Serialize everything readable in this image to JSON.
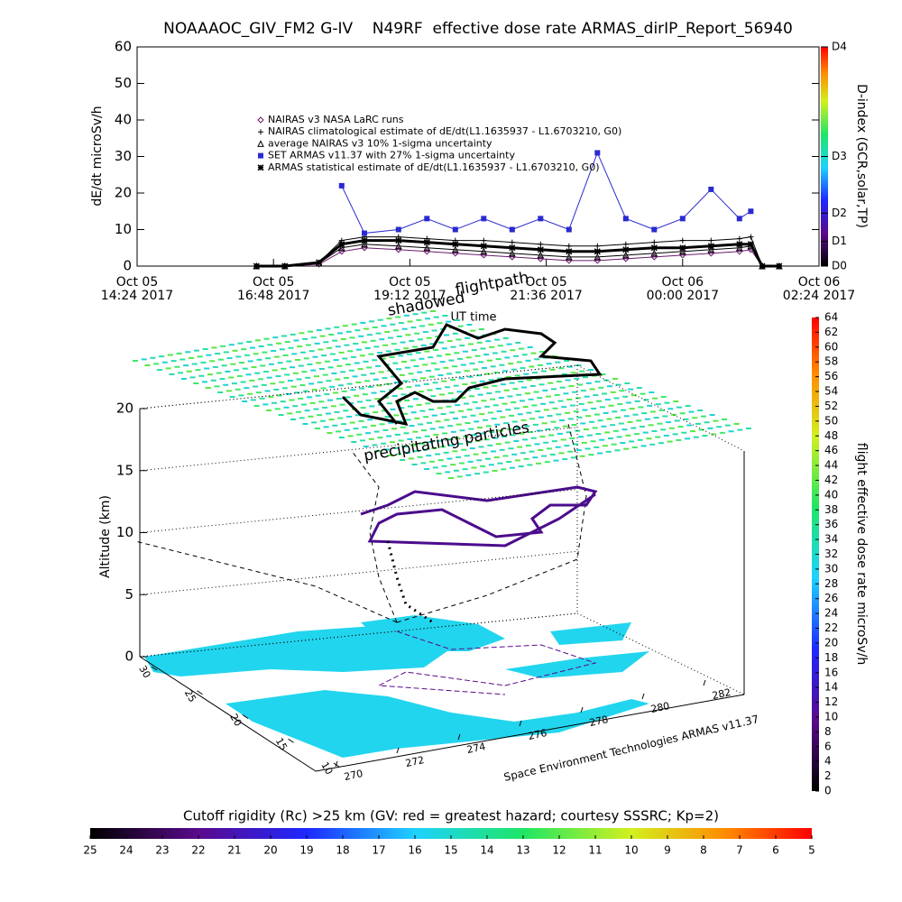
{
  "chart_data": [
    {
      "type": "line",
      "title": "NOAAAOC_GIV_FM2 G-IV    N49RF  effective dose rate ARMAS_dirIP_Report_56940",
      "ylabel": "dE/dt microSv/h",
      "xlabel": "UT time",
      "x": [
        16.5,
        17.0,
        17.6,
        18.0,
        18.4,
        19.0,
        19.5,
        20.0,
        20.5,
        21.0,
        21.5,
        22.0,
        22.5,
        23.0,
        23.5,
        24.0,
        24.5,
        25.0,
        25.2,
        25.4,
        25.7
      ],
      "xlim": [
        14.4,
        26.4
      ],
      "xticks": [
        {
          "value": 14.4,
          "label": "Oct 05\n14:24 2017"
        },
        {
          "value": 16.8,
          "label": "Oct 05\n16:48 2017"
        },
        {
          "value": 19.2,
          "label": "Oct 05\n19:12 2017"
        },
        {
          "value": 21.6,
          "label": "Oct 05\n21:36 2017"
        },
        {
          "value": 24.0,
          "label": "Oct 06\n00:00 2017"
        },
        {
          "value": 26.4,
          "label": "Oct 06\n02:24 2017"
        }
      ],
      "ylim": [
        0,
        60
      ],
      "yticks": [
        0,
        10,
        20,
        30,
        40,
        50,
        60
      ],
      "series": [
        {
          "name": "NAIRAS v3 NASA LaRC runs",
          "color": "#6a1b6e",
          "marker": "diamond",
          "values": [
            0,
            0,
            0.5,
            4,
            5,
            4.5,
            4,
            3.5,
            3,
            2.5,
            2,
            1.5,
            1.5,
            2,
            2.5,
            3,
            3.5,
            4,
            4.5,
            0,
            0
          ]
        },
        {
          "name": "NAIRAS climatological estimate of dE/dt(L1.1635937 - L1.6703210, G0)",
          "color": "#000000",
          "marker": "plus",
          "values": [
            0,
            0,
            1,
            7,
            8,
            8,
            7.5,
            7,
            7,
            6.5,
            6,
            5.5,
            5.5,
            6,
            6.5,
            7,
            7,
            7.5,
            8,
            0,
            0
          ]
        },
        {
          "name": "average NAIRAS v3 10% 1-sigma uncertainty",
          "color": "#000000",
          "marker": "triangle",
          "values": [
            0,
            0,
            0.8,
            5,
            6,
            5.5,
            5,
            4.5,
            4,
            3.5,
            3,
            2.5,
            2.5,
            3,
            3.5,
            4,
            4.5,
            5,
            5.5,
            0,
            0
          ]
        },
        {
          "name": "SET ARMAS v11.37 with 27% 1-sigma uncertainty",
          "color": "#2a2ad0",
          "marker": "square",
          "values": [
            null,
            null,
            null,
            22,
            9,
            10,
            13,
            10,
            13,
            10,
            13,
            10,
            31,
            13,
            10,
            13,
            21,
            13,
            15,
            null,
            null
          ]
        },
        {
          "name": "ARMAS statistical estimate of dE/dt(L1.1635937 - L1.6703210, G0)",
          "color": "#000000",
          "marker": "asterisk",
          "values": [
            0,
            0,
            1,
            6,
            7,
            7,
            6.5,
            6,
            5.5,
            5,
            4.5,
            4,
            4,
            4.5,
            5,
            5,
            5.5,
            6,
            6,
            0,
            0
          ]
        }
      ],
      "colorbar": {
        "label": "D-index (GCR,solar,TP)",
        "lim": [
          0,
          60
        ],
        "ticks": [
          {
            "value": 0,
            "label": "D0"
          },
          {
            "value": 6.75,
            "label": "D1"
          },
          {
            "value": 14.5,
            "label": "D2"
          },
          {
            "value": 30,
            "label": "D3"
          },
          {
            "value": 60,
            "label": "D4"
          }
        ]
      }
    },
    {
      "type": "surface3d",
      "ylabel": "Altitude (km)",
      "ylim": [
        0,
        20
      ],
      "yticks": [
        0,
        5,
        10,
        15,
        20
      ],
      "latitude_lim": [
        30,
        10
      ],
      "latitude_ticks": [
        30,
        25,
        20,
        15,
        10
      ],
      "longitude_lim": [
        270,
        282
      ],
      "longitude_ticks": [
        270,
        272,
        274,
        276,
        278,
        280,
        282
      ],
      "annotations": [
        "shadowed",
        "flightpath",
        "precipitating particles"
      ],
      "credit": "Space Environment Technologies ARMAS v11.37",
      "colorbar": {
        "label": "flight effective dose rate microSv/h",
        "lim": [
          0,
          64
        ],
        "ticks": [
          0,
          2,
          4,
          6,
          8,
          10,
          12,
          14,
          16,
          18,
          20,
          22,
          24,
          26,
          28,
          30,
          32,
          34,
          36,
          38,
          40,
          42,
          44,
          46,
          48,
          50,
          52,
          54,
          56,
          58,
          60,
          62,
          64
        ]
      },
      "rigidity_colorbar": {
        "label": "Cutoff rigidity (Rc) >25 km (GV: red = greatest hazard; courtesy SSSRC; Kp=2)",
        "lim": [
          25,
          5
        ],
        "ticks": [
          25,
          24,
          23,
          22,
          21,
          20,
          19,
          18,
          17,
          16,
          15,
          14,
          13,
          12,
          11,
          10,
          9,
          8,
          7,
          6,
          5
        ]
      }
    }
  ]
}
